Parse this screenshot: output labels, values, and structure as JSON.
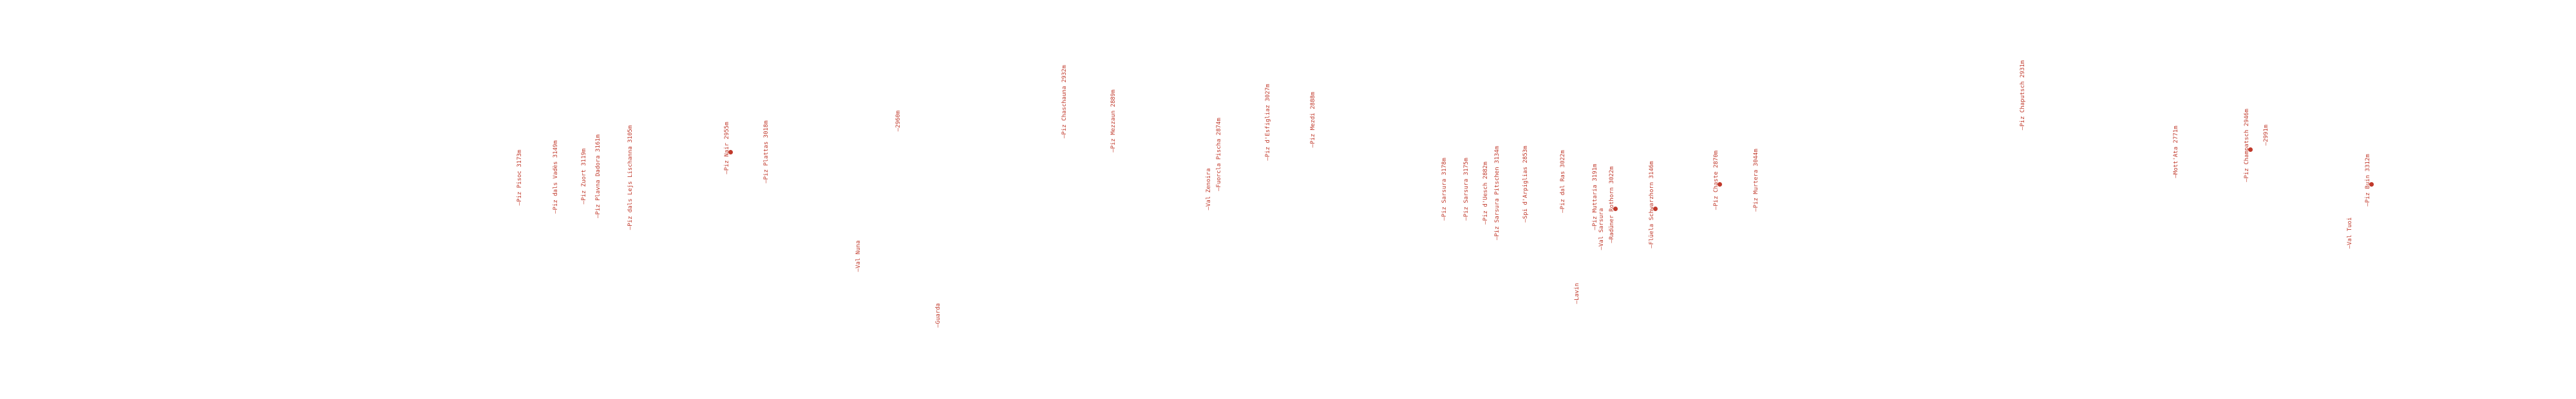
{
  "style": {
    "label_color": "#c0392b",
    "background": "#ffffff"
  },
  "labels": [
    {
      "text": "Piz Pisoc 3173m",
      "has_dot": false
    },
    {
      "text": "Piz dals Vadès 3149m",
      "has_dot": false
    },
    {
      "text": "Piz Zuort 3119m",
      "has_dot": false
    },
    {
      "text": "Piz Plavna Dadora 3161m",
      "has_dot": false
    },
    {
      "text": "Piz dals Lejs Lischanna 3105m",
      "has_dot": false
    },
    {
      "text": "Piz Nair 2955m",
      "has_dot": true
    },
    {
      "text": "Piz Plattas 3018m",
      "has_dot": false
    },
    {
      "text": "Val Nuna",
      "has_dot": false
    },
    {
      "text": "2960m",
      "has_dot": false
    },
    {
      "text": "Guarda",
      "has_dot": false
    },
    {
      "text": "Piz Chaschauna 2932m",
      "has_dot": false
    },
    {
      "text": "Piz Mezzaun 2889m",
      "has_dot": false
    },
    {
      "text": "Val Zenoira",
      "has_dot": false
    },
    {
      "text": "Fuorcla Pischa 2874m",
      "has_dot": false
    },
    {
      "text": "Piz d'Esfigliaz 3027m",
      "has_dot": false
    },
    {
      "text": "Piz Mezdi 2888m",
      "has_dot": false
    },
    {
      "text": "Piz Sarsura 3178m",
      "has_dot": false
    },
    {
      "text": "Piz Sarsura 3175m",
      "has_dot": false
    },
    {
      "text": "Piz d'Uesch 2882m",
      "has_dot": false
    },
    {
      "text": "Piz Sarsura Pitschen 3134m",
      "has_dot": false
    },
    {
      "text": "Spi d'Arpiglias 2853m",
      "has_dot": false
    },
    {
      "text": "Piz dal Ras 3022m",
      "has_dot": false
    },
    {
      "text": "Lavin",
      "has_dot": false
    },
    {
      "text": "Val Sarsura",
      "has_dot": false
    },
    {
      "text": "Piz Muttaria 3191m",
      "has_dot": false
    },
    {
      "text": "Radüner Rothorn 3022m",
      "has_dot": true
    },
    {
      "text": "Flüela Schwarzhorn 3146m",
      "has_dot": true
    },
    {
      "text": "Piz Chaste 2870m",
      "has_dot": true
    },
    {
      "text": "Piz Murtera 3044m",
      "has_dot": false
    },
    {
      "text": "Piz Chaputsch 2931m",
      "has_dot": false
    },
    {
      "text": "Mott'Ata 2771m",
      "has_dot": false
    },
    {
      "text": "Piz Champatsch 2946m",
      "has_dot": true
    },
    {
      "text": "2991m",
      "has_dot": false
    },
    {
      "text": "Val Tuoi",
      "has_dot": false
    },
    {
      "text": "Piz Buin 3312m",
      "has_dot": true
    }
  ]
}
